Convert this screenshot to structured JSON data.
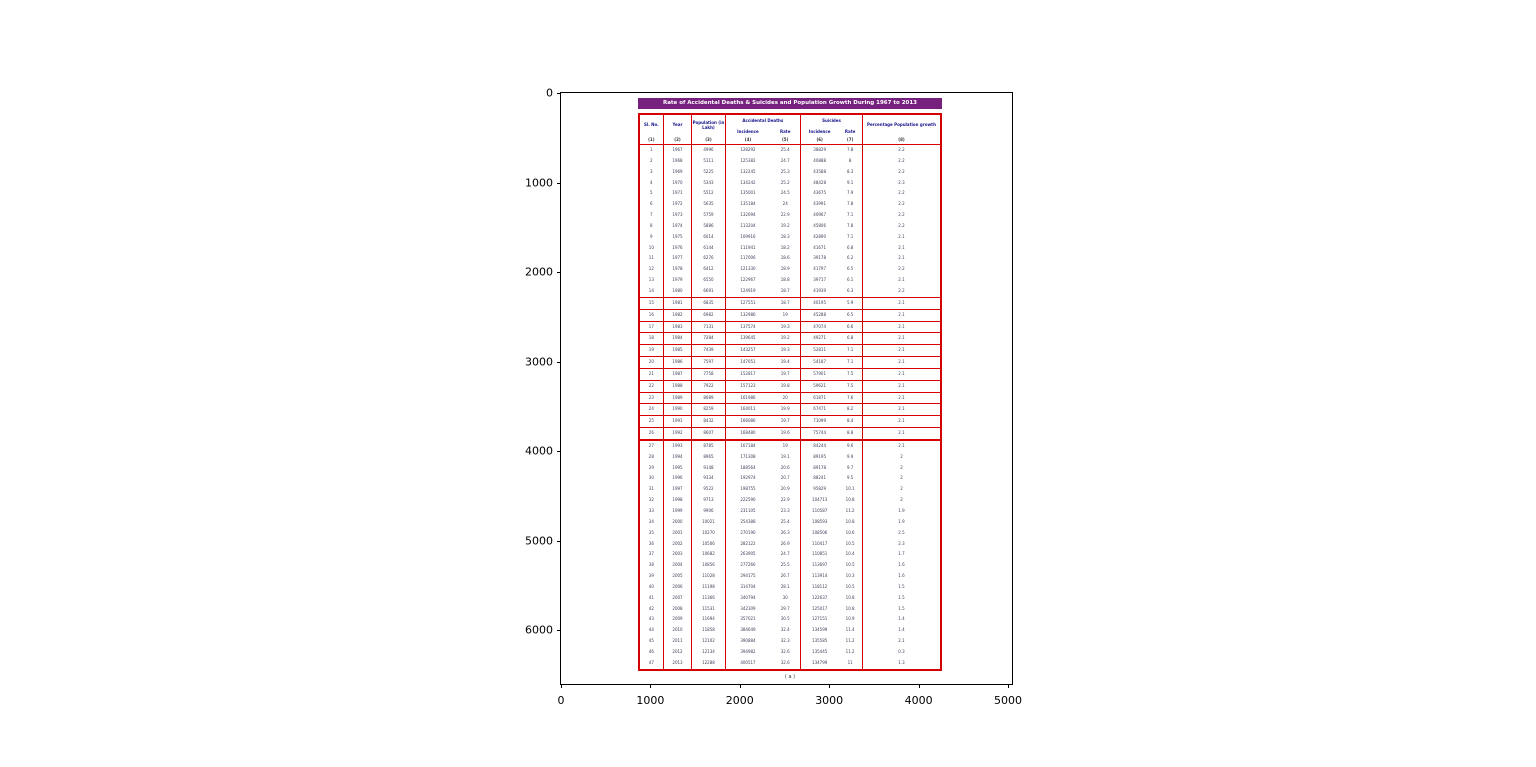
{
  "figure": {
    "x_ticks": [
      "0",
      "1000",
      "2000",
      "3000",
      "4000",
      "5000"
    ],
    "y_ticks": [
      "0",
      "1000",
      "2000",
      "3000",
      "4000",
      "5000",
      "6000"
    ]
  },
  "chart_data": {
    "type": "table",
    "title": "Rate of Accidental Deaths & Suicides and Population Growth During 1967 to 2013",
    "caption": "( a )",
    "header": {
      "sl_no": "Sl. No.",
      "year": "Year",
      "population": "Population (in Lakh)",
      "accidental": "Accidental Deaths",
      "suicides": "Suicides",
      "incidence": "Incidence",
      "rate": "Rate",
      "incidence2": "Incidence",
      "rate2": "Rate",
      "pct": "Percentage Population growth"
    },
    "col_numbers": [
      "(1)",
      "(2)",
      "(3)",
      "(4)",
      "(5)",
      "(6)",
      "(7)",
      "(8)"
    ],
    "columns": [
      "Sl. No.",
      "Year",
      "Population (in Lakh)",
      "Accidental Deaths Incidence",
      "Accidental Deaths Rate",
      "Suicides Incidence",
      "Suicides Rate",
      "Percentage Population growth"
    ],
    "rows": [
      [
        1,
        1967,
        4996,
        128292,
        25.4,
        38829,
        7.8,
        2.2
      ],
      [
        2,
        1968,
        5111,
        125382,
        24.7,
        40888,
        8.0,
        2.2
      ],
      [
        3,
        1969,
        5225,
        132245,
        25.3,
        43588,
        8.3,
        2.2
      ],
      [
        4,
        1970,
        5343,
        134242,
        25.2,
        48428,
        9.1,
        2.3
      ],
      [
        5,
        1971,
        5512,
        135001,
        24.5,
        43675,
        7.9,
        2.2
      ],
      [
        6,
        1972,
        5635,
        135184,
        24.0,
        43991,
        7.8,
        2.2
      ],
      [
        7,
        1973,
        5759,
        132094,
        22.9,
        40967,
        7.1,
        2.2
      ],
      [
        8,
        1974,
        5886,
        113204,
        19.2,
        45806,
        7.8,
        2.2
      ],
      [
        9,
        1975,
        6014,
        109916,
        18.3,
        42890,
        7.1,
        2.1
      ],
      [
        10,
        1976,
        6144,
        111941,
        18.2,
        41671,
        6.8,
        2.1
      ],
      [
        11,
        1977,
        6276,
        117006,
        18.6,
        39178,
        6.2,
        2.1
      ],
      [
        12,
        1978,
        6412,
        121330,
        18.9,
        41797,
        6.5,
        2.2
      ],
      [
        13,
        1979,
        6550,
        122967,
        18.8,
        39717,
        6.1,
        2.1
      ],
      [
        14,
        1980,
        6691,
        124919,
        18.7,
        41939,
        6.3,
        2.2
      ],
      [
        15,
        1981,
        6835,
        127551,
        18.7,
        40195,
        5.9,
        2.1
      ],
      [
        16,
        1982,
        6982,
        132986,
        19.0,
        45288,
        6.5,
        2.1
      ],
      [
        17,
        1983,
        7131,
        137574,
        19.3,
        47074,
        6.6,
        2.1
      ],
      [
        18,
        1984,
        7284,
        139645,
        19.2,
        49271,
        6.8,
        2.1
      ],
      [
        19,
        1985,
        7439,
        143257,
        19.3,
        52811,
        7.1,
        2.1
      ],
      [
        20,
        1986,
        7597,
        147051,
        19.4,
        54187,
        7.1,
        2.1
      ],
      [
        21,
        1987,
        7758,
        152817,
        19.7,
        57901,
        7.5,
        2.1
      ],
      [
        22,
        1988,
        7922,
        157123,
        19.8,
        59621,
        7.5,
        2.1
      ],
      [
        23,
        1989,
        8089,
        161986,
        20.0,
        61871,
        7.6,
        2.1
      ],
      [
        24,
        1990,
        8259,
        164011,
        19.9,
        67471,
        8.2,
        2.1
      ],
      [
        25,
        1991,
        8432,
        166086,
        19.7,
        71099,
        8.4,
        2.1
      ],
      [
        26,
        1992,
        8607,
        168480,
        19.6,
        75744,
        8.8,
        2.1
      ],
      [
        27,
        1993,
        8785,
        167184,
        19.0,
        84244,
        9.6,
        2.1
      ],
      [
        28,
        1994,
        8965,
        171308,
        19.1,
        89195,
        9.9,
        2.0
      ],
      [
        29,
        1995,
        9148,
        188564,
        20.6,
        89178,
        9.7,
        2.0
      ],
      [
        30,
        1996,
        9334,
        192974,
        20.7,
        88241,
        9.5,
        2.0
      ],
      [
        31,
        1997,
        9522,
        198755,
        20.9,
        95829,
        10.1,
        2.0
      ],
      [
        32,
        1998,
        9713,
        222590,
        22.9,
        104713,
        10.8,
        2.0
      ],
      [
        33,
        1999,
        9906,
        231105,
        23.3,
        110587,
        11.2,
        1.9
      ],
      [
        34,
        2000,
        10021,
        254388,
        25.4,
        108593,
        10.8,
        1.9
      ],
      [
        35,
        2001,
        10270,
        270190,
        26.3,
        108506,
        10.6,
        2.5
      ],
      [
        36,
        2002,
        10506,
        282122,
        26.9,
        110417,
        10.5,
        2.3
      ],
      [
        37,
        2003,
        10682,
        263905,
        24.7,
        110851,
        10.4,
        1.7
      ],
      [
        38,
        2004,
        10856,
        277266,
        25.5,
        113697,
        10.5,
        1.6
      ],
      [
        39,
        2005,
        11028,
        294175,
        26.7,
        113914,
        10.3,
        1.6
      ],
      [
        40,
        2006,
        11198,
        314704,
        28.1,
        118112,
        10.5,
        1.5
      ],
      [
        41,
        2007,
        11366,
        340794,
        30.0,
        122637,
        10.8,
        1.5
      ],
      [
        42,
        2008,
        11531,
        342309,
        29.7,
        125017,
        10.8,
        1.5
      ],
      [
        43,
        2009,
        11694,
        357021,
        30.5,
        127151,
        10.9,
        1.4
      ],
      [
        44,
        2010,
        11858,
        384649,
        32.4,
        134599,
        11.4,
        1.4
      ],
      [
        45,
        2011,
        12102,
        390884,
        32.3,
        135585,
        11.2,
        2.1
      ],
      [
        46,
        2012,
        12134,
        394982,
        32.6,
        135445,
        11.2,
        0.3
      ],
      [
        47,
        2013,
        12288,
        400517,
        32.6,
        134799,
        11.0,
        1.3
      ]
    ]
  }
}
